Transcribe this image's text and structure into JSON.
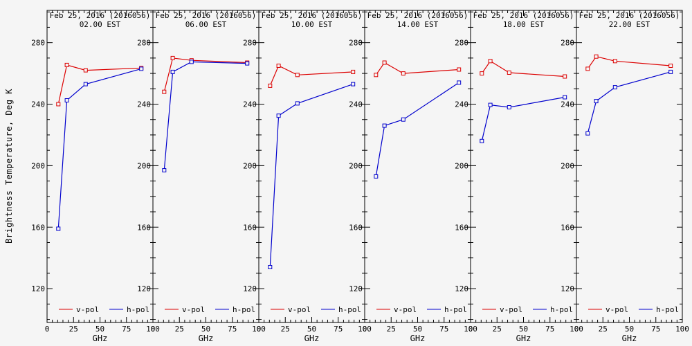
{
  "figure": {
    "ylabel": "Brightness Temperature, Deg K",
    "xlabel": "GHz",
    "background": "#f5f5f5",
    "axis_color": "#000000",
    "vpol_color": "#dc0000",
    "hpol_color": "#0000cd",
    "legend": {
      "vpol_label": "v-pol",
      "hpol_label": "h-pol"
    },
    "y_ticks": [
      120,
      160,
      200,
      240,
      280
    ],
    "x_ticks": [
      0,
      25,
      50,
      75,
      100
    ]
  },
  "chart_data": [
    {
      "type": "line",
      "title": "Feb 25, 2016 (2016056)",
      "subtitle": "02.00 EST",
      "xlabel": "GHz",
      "ylabel": "Brightness Temperature, Deg K",
      "xlim": [
        0,
        100
      ],
      "ylim": [
        98,
        301
      ],
      "x": [
        10.65,
        18.7,
        36.5,
        89
      ],
      "series": [
        {
          "name": "v-pol",
          "color": "#dc0000",
          "values": [
            240,
            265.5,
            262,
            263.5
          ]
        },
        {
          "name": "h-pol",
          "color": "#0000cd",
          "values": [
            159,
            242.5,
            253,
            263
          ]
        }
      ]
    },
    {
      "type": "line",
      "title": "Feb 25, 2016 (2016056)",
      "subtitle": "06.00 EST",
      "xlabel": "GHz",
      "ylabel": "Brightness Temperature, Deg K",
      "xlim": [
        0,
        100
      ],
      "ylim": [
        98,
        301
      ],
      "x": [
        10.65,
        18.7,
        36.5,
        89
      ],
      "series": [
        {
          "name": "v-pol",
          "color": "#dc0000",
          "values": [
            248,
            270,
            268.5,
            267
          ]
        },
        {
          "name": "h-pol",
          "color": "#0000cd",
          "values": [
            197,
            261,
            267.5,
            266.5
          ]
        }
      ]
    },
    {
      "type": "line",
      "title": "Feb 25, 2016 (2016056)",
      "subtitle": "10.00 EST",
      "xlabel": "GHz",
      "ylabel": "Brightness Temperature, Deg K",
      "xlim": [
        0,
        100
      ],
      "ylim": [
        98,
        301
      ],
      "x": [
        10.65,
        18.7,
        36.5,
        89
      ],
      "series": [
        {
          "name": "v-pol",
          "color": "#dc0000",
          "values": [
            252,
            265,
            259,
            261
          ]
        },
        {
          "name": "h-pol",
          "color": "#0000cd",
          "values": [
            134,
            232.5,
            240.5,
            253
          ]
        }
      ]
    },
    {
      "type": "line",
      "title": "Feb 25, 2016 (2016056)",
      "subtitle": "14.00 EST",
      "xlabel": "GHz",
      "ylabel": "Brightness Temperature, Deg K",
      "xlim": [
        0,
        100
      ],
      "ylim": [
        98,
        301
      ],
      "x": [
        10.65,
        18.7,
        36.5,
        89
      ],
      "series": [
        {
          "name": "v-pol",
          "color": "#dc0000",
          "values": [
            259,
            267,
            260,
            262.5
          ]
        },
        {
          "name": "h-pol",
          "color": "#0000cd",
          "values": [
            193,
            226,
            230,
            254
          ]
        }
      ]
    },
    {
      "type": "line",
      "title": "Feb 25, 2016 (2016056)",
      "subtitle": "18.00 EST",
      "xlabel": "GHz",
      "ylabel": "Brightness Temperature, Deg K",
      "xlim": [
        0,
        100
      ],
      "ylim": [
        98,
        301
      ],
      "x": [
        10.65,
        18.7,
        36.5,
        89
      ],
      "series": [
        {
          "name": "v-pol",
          "color": "#dc0000",
          "values": [
            260,
            268,
            260.5,
            258
          ]
        },
        {
          "name": "h-pol",
          "color": "#0000cd",
          "values": [
            216,
            239.5,
            238,
            244.5
          ]
        }
      ]
    },
    {
      "type": "line",
      "title": "Feb 25, 2016 (2016056)",
      "subtitle": "22.00 EST",
      "xlabel": "GHz",
      "ylabel": "Brightness Temperature, Deg K",
      "xlim": [
        0,
        100
      ],
      "ylim": [
        98,
        301
      ],
      "x": [
        10.65,
        18.7,
        36.5,
        89
      ],
      "series": [
        {
          "name": "v-pol",
          "color": "#dc0000",
          "values": [
            263,
            271,
            268,
            265
          ]
        },
        {
          "name": "h-pol",
          "color": "#0000cd",
          "values": [
            221,
            242,
            251,
            261
          ]
        }
      ]
    }
  ]
}
